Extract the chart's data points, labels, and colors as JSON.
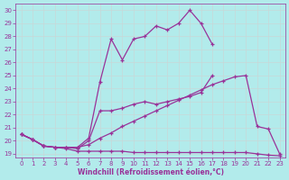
{
  "xlabel": "Windchill (Refroidissement éolien,°C)",
  "bg_color": "#b2ebeb",
  "grid_color": "#c8d8d8",
  "line_color": "#993399",
  "xlim": [
    -0.5,
    23.5
  ],
  "ylim": [
    18.7,
    30.5
  ],
  "xticks": [
    0,
    1,
    2,
    3,
    4,
    5,
    6,
    7,
    8,
    9,
    10,
    11,
    12,
    13,
    14,
    15,
    16,
    17,
    18,
    19,
    20,
    21,
    22,
    23
  ],
  "yticks": [
    19,
    20,
    21,
    22,
    23,
    24,
    25,
    26,
    27,
    28,
    29,
    30
  ],
  "line1_x": [
    0,
    1,
    2,
    3,
    4,
    5,
    6,
    7,
    8,
    9,
    10,
    11,
    12,
    13,
    14,
    15,
    16,
    17,
    18,
    19,
    20,
    21,
    22,
    23
  ],
  "line1_y": [
    20.5,
    20.1,
    19.6,
    19.5,
    19.4,
    19.2,
    19.2,
    19.2,
    19.2,
    19.2,
    19.1,
    19.1,
    19.1,
    19.1,
    19.1,
    19.1,
    19.1,
    19.1,
    19.1,
    19.1,
    19.1,
    19.0,
    18.9,
    18.85
  ],
  "line2_x": [
    0,
    1,
    2,
    3,
    4,
    5,
    6,
    7,
    8,
    9,
    10,
    11,
    12,
    13,
    14,
    15,
    16,
    17,
    18,
    19,
    20,
    21,
    22,
    23
  ],
  "line2_y": [
    20.5,
    20.1,
    19.6,
    19.5,
    19.5,
    19.5,
    19.7,
    20.2,
    20.6,
    21.1,
    21.5,
    21.9,
    22.3,
    22.7,
    23.1,
    23.5,
    23.9,
    24.3,
    24.6,
    24.9,
    25.0,
    21.1,
    20.9,
    19.0
  ],
  "line3_x": [
    0,
    1,
    2,
    3,
    4,
    5,
    6,
    7,
    8,
    9,
    10,
    11,
    12,
    13,
    14,
    15,
    16,
    17
  ],
  "line3_y": [
    20.5,
    20.1,
    19.6,
    19.5,
    19.5,
    19.4,
    20.0,
    22.3,
    22.3,
    22.5,
    22.8,
    23.0,
    22.8,
    23.0,
    23.2,
    23.4,
    23.7,
    25.0
  ],
  "line4_x": [
    0,
    1,
    2,
    3,
    4,
    5,
    6,
    7,
    8,
    9,
    10,
    11,
    12,
    13,
    14,
    15,
    16,
    17
  ],
  "line4_y": [
    20.5,
    20.1,
    19.6,
    19.5,
    19.5,
    19.5,
    20.2,
    24.5,
    27.8,
    26.2,
    27.8,
    28.0,
    28.8,
    28.5,
    29.0,
    30.0,
    29.0,
    27.4
  ]
}
